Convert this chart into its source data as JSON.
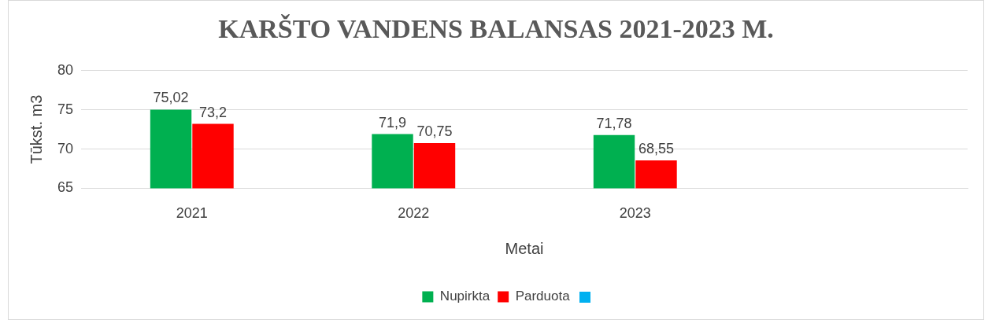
{
  "chart_data": {
    "type": "bar",
    "title": "KARŠTO VANDENS BALANSAS 2021-2023 M.",
    "xlabel": "Metai",
    "ylabel": "Tūkst. m3",
    "categories": [
      "2021",
      "2022",
      "2023",
      null
    ],
    "series": [
      {
        "name": "Nupirkta",
        "color": "#00b050",
        "values": [
          75.02,
          71.9,
          71.78,
          null
        ],
        "value_labels": [
          "75,02",
          "71,9",
          "71,78",
          null
        ]
      },
      {
        "name": "Parduota",
        "color": "#ff0000",
        "values": [
          73.2,
          70.75,
          68.55,
          null
        ],
        "value_labels": [
          "73,2",
          "70,75",
          "68,55",
          null
        ]
      }
    ],
    "ylim": [
      65,
      80
    ],
    "yticks": [
      65,
      70,
      75,
      80
    ],
    "grid": "y",
    "legend": "bottom"
  }
}
